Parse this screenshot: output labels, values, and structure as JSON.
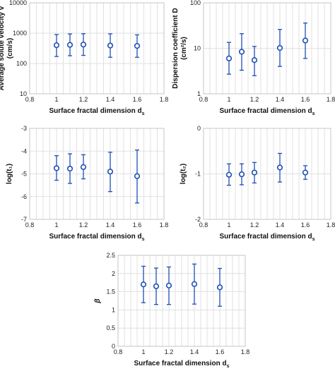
{
  "colors": {
    "marker": "#1f4fb4",
    "grid": "#d9d9d9",
    "frame": "#bfbfbf"
  },
  "chart_data": [
    {
      "id": "v",
      "type": "scatter",
      "scale": "log",
      "xlabel": "Surface fractal dimension d",
      "xlabel_sub": "s",
      "ylabel_lines": [
        "Average solute velocity v",
        "(cm/s)"
      ],
      "xlim": [
        0.8,
        1.8
      ],
      "ylim": [
        10,
        10000
      ],
      "xticks": [
        "0.8",
        "1",
        "1.2",
        "1.4",
        "1.6",
        "1.8"
      ],
      "yticks": [
        "10",
        "100",
        "1000",
        "10000"
      ],
      "ytick_values": [
        10,
        100,
        1000,
        10000
      ],
      "grid": true,
      "points": [
        {
          "x": 1.0,
          "y": 400,
          "lo": 170,
          "hi": 900
        },
        {
          "x": 1.1,
          "y": 410,
          "lo": 180,
          "hi": 940
        },
        {
          "x": 1.2,
          "y": 420,
          "lo": 185,
          "hi": 960
        },
        {
          "x": 1.4,
          "y": 390,
          "lo": 160,
          "hi": 950
        },
        {
          "x": 1.6,
          "y": 380,
          "lo": 160,
          "hi": 880
        }
      ]
    },
    {
      "id": "D",
      "type": "scatter",
      "scale": "log",
      "xlabel": "Surface fractal dimension d",
      "xlabel_sub": "s",
      "ylabel_lines": [
        "Dispersion coefficient D",
        "(cm²/s)"
      ],
      "xlim": [
        0.8,
        1.8
      ],
      "ylim": [
        1,
        100
      ],
      "xticks": [
        "0.8",
        "1",
        "1.2",
        "1.4",
        "1.6",
        "1.8"
      ],
      "yticks": [
        "1",
        "10",
        "100"
      ],
      "ytick_values": [
        1,
        10,
        100
      ],
      "grid": true,
      "points": [
        {
          "x": 1.0,
          "y": 6.0,
          "lo": 2.7,
          "hi": 13.5
        },
        {
          "x": 1.1,
          "y": 8.4,
          "lo": 3.3,
          "hi": 21
        },
        {
          "x": 1.2,
          "y": 5.5,
          "lo": 2.5,
          "hi": 11
        },
        {
          "x": 1.4,
          "y": 10.2,
          "lo": 4.0,
          "hi": 26
        },
        {
          "x": 1.6,
          "y": 14.8,
          "lo": 6.0,
          "hi": 36
        }
      ]
    },
    {
      "id": "t1",
      "type": "scatter",
      "scale": "linear",
      "xlabel": "Surface fractal dimension d",
      "xlabel_sub": "s",
      "ylabel_lines": [
        "log(t₁)"
      ],
      "xlim": [
        0.8,
        1.8
      ],
      "ylim": [
        -7,
        -3
      ],
      "xticks": [
        "0.8",
        "1",
        "1.2",
        "1.4",
        "1.6",
        "1.8"
      ],
      "yticks": [
        "-7",
        "-6",
        "-5",
        "-4",
        "-3"
      ],
      "ytick_values": [
        -7,
        -6,
        -5,
        -4,
        -3
      ],
      "grid": true,
      "points": [
        {
          "x": 1.0,
          "y": -4.75,
          "lo": -5.28,
          "hi": -4.2
        },
        {
          "x": 1.1,
          "y": -4.77,
          "lo": -5.42,
          "hi": -4.12
        },
        {
          "x": 1.2,
          "y": -4.7,
          "lo": -5.22,
          "hi": -4.16
        },
        {
          "x": 1.4,
          "y": -4.9,
          "lo": -5.78,
          "hi": -4.05
        },
        {
          "x": 1.6,
          "y": -5.1,
          "lo": -6.28,
          "hi": -3.95
        }
      ]
    },
    {
      "id": "t2",
      "type": "scatter",
      "scale": "linear",
      "xlabel": "Surface fractal dimension d",
      "xlabel_sub": "s",
      "ylabel_lines": [
        "log(t₂)"
      ],
      "xlim": [
        0.8,
        1.8
      ],
      "ylim": [
        -2,
        0
      ],
      "xticks": [
        "0.8",
        "1",
        "1.2",
        "1.4",
        "1.6",
        "1.8"
      ],
      "yticks": [
        "-2",
        "-1",
        "0"
      ],
      "ytick_values": [
        -2,
        -1,
        0
      ],
      "grid": true,
      "points": [
        {
          "x": 1.0,
          "y": -1.02,
          "lo": -1.25,
          "hi": -0.78
        },
        {
          "x": 1.1,
          "y": -1.01,
          "lo": -1.24,
          "hi": -0.78
        },
        {
          "x": 1.2,
          "y": -0.97,
          "lo": -1.2,
          "hi": -0.75
        },
        {
          "x": 1.4,
          "y": -0.86,
          "lo": -1.18,
          "hi": -0.55
        },
        {
          "x": 1.6,
          "y": -0.97,
          "lo": -1.12,
          "hi": -0.82
        }
      ]
    },
    {
      "id": "beta",
      "type": "scatter",
      "scale": "linear",
      "xlabel": "Surface fractal dimension d",
      "xlabel_sub": "s",
      "ylabel_lines": [
        "β"
      ],
      "ylabel_italic": true,
      "xlim": [
        0.8,
        1.8
      ],
      "ylim": [
        0,
        2.5
      ],
      "xticks": [
        "0.8",
        "1",
        "1.2",
        "1.4",
        "1.6",
        "1.8"
      ],
      "yticks": [
        "0",
        "0.5",
        "1",
        "1.5",
        "2",
        "2.5"
      ],
      "ytick_values": [
        0,
        0.5,
        1,
        1.5,
        2,
        2.5
      ],
      "grid": true,
      "points": [
        {
          "x": 1.0,
          "y": 1.7,
          "lo": 1.2,
          "hi": 2.2
        },
        {
          "x": 1.1,
          "y": 1.65,
          "lo": 1.15,
          "hi": 2.15
        },
        {
          "x": 1.2,
          "y": 1.67,
          "lo": 1.15,
          "hi": 2.18
        },
        {
          "x": 1.4,
          "y": 1.71,
          "lo": 1.16,
          "hi": 2.26
        },
        {
          "x": 1.6,
          "y": 1.62,
          "lo": 1.1,
          "hi": 2.14
        }
      ]
    }
  ]
}
